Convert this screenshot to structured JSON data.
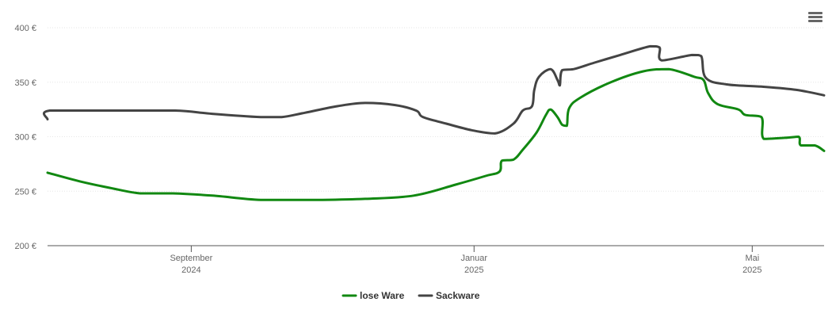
{
  "chart_data": {
    "type": "line",
    "currency_suffix": " €",
    "ylim": [
      200,
      400
    ],
    "yticks": [
      200,
      250,
      300,
      350,
      400
    ],
    "ytick_labels": [
      "200 €",
      "250 €",
      "300 €",
      "350 €",
      "400 €"
    ],
    "xlim": [
      "2024-07-01",
      "2025-06-01"
    ],
    "xticks": [
      {
        "date": "2024-09-01",
        "month": "September",
        "year": "2024"
      },
      {
        "date": "2025-01-01",
        "month": "Januar",
        "year": "2025"
      },
      {
        "date": "2025-05-01",
        "month": "Mai",
        "year": "2025"
      }
    ],
    "grid": true,
    "legend_position": "bottom-center",
    "series": [
      {
        "name": "lose Ware",
        "color": "#118811",
        "points": [
          [
            "2024-07-01",
            267
          ],
          [
            "2024-07-15",
            259
          ],
          [
            "2024-07-28",
            253
          ],
          [
            "2024-08-10",
            248
          ],
          [
            "2024-08-24",
            248
          ],
          [
            "2024-09-10",
            246
          ],
          [
            "2024-10-01",
            242
          ],
          [
            "2024-10-25",
            242
          ],
          [
            "2024-11-15",
            243
          ],
          [
            "2024-12-06",
            246
          ],
          [
            "2024-12-24",
            256
          ],
          [
            "2025-01-06",
            264
          ],
          [
            "2025-01-12",
            268
          ],
          [
            "2025-01-13",
            278
          ],
          [
            "2025-01-18",
            279
          ],
          [
            "2025-01-22",
            288
          ],
          [
            "2025-01-28",
            304
          ],
          [
            "2025-02-01",
            320
          ],
          [
            "2025-02-03",
            325
          ],
          [
            "2025-02-06",
            318
          ],
          [
            "2025-02-08",
            311
          ],
          [
            "2025-02-10",
            310
          ],
          [
            "2025-02-11",
            326
          ],
          [
            "2025-02-16",
            336
          ],
          [
            "2025-03-01",
            350
          ],
          [
            "2025-03-15",
            360
          ],
          [
            "2025-03-26",
            362
          ],
          [
            "2025-04-06",
            355
          ],
          [
            "2025-04-10",
            352
          ],
          [
            "2025-04-12",
            340
          ],
          [
            "2025-04-16",
            330
          ],
          [
            "2025-04-25",
            325
          ],
          [
            "2025-04-28",
            320
          ],
          [
            "2025-05-05",
            318
          ],
          [
            "2025-05-06",
            298
          ],
          [
            "2025-05-15",
            299
          ],
          [
            "2025-05-21",
            300
          ],
          [
            "2025-05-22",
            292
          ],
          [
            "2025-05-28",
            292
          ],
          [
            "2025-06-01",
            287
          ]
        ]
      },
      {
        "name": "Sackware",
        "color": "#444444",
        "points": [
          [
            "2024-07-01",
            316
          ],
          [
            "2024-07-02",
            324
          ],
          [
            "2024-07-30",
            324
          ],
          [
            "2024-08-25",
            324
          ],
          [
            "2024-09-10",
            321
          ],
          [
            "2024-10-01",
            318
          ],
          [
            "2024-10-10",
            318
          ],
          [
            "2024-10-20",
            322
          ],
          [
            "2024-11-03",
            328
          ],
          [
            "2024-11-15",
            331
          ],
          [
            "2024-11-28",
            329
          ],
          [
            "2024-12-07",
            324
          ],
          [
            "2024-12-10",
            318
          ],
          [
            "2024-12-20",
            312
          ],
          [
            "2024-12-31",
            306
          ],
          [
            "2025-01-10",
            303
          ],
          [
            "2025-01-18",
            312
          ],
          [
            "2025-01-22",
            324
          ],
          [
            "2025-01-26",
            328
          ],
          [
            "2025-01-27",
            343
          ],
          [
            "2025-01-29",
            355
          ],
          [
            "2025-02-03",
            362
          ],
          [
            "2025-02-06",
            352
          ],
          [
            "2025-02-07",
            347
          ],
          [
            "2025-02-08",
            361
          ],
          [
            "2025-02-13",
            362
          ],
          [
            "2025-02-22",
            368
          ],
          [
            "2025-03-05",
            375
          ],
          [
            "2025-03-18",
            383
          ],
          [
            "2025-03-22",
            382
          ],
          [
            "2025-03-23",
            370
          ],
          [
            "2025-04-05",
            375
          ],
          [
            "2025-04-09",
            374
          ],
          [
            "2025-04-11",
            354
          ],
          [
            "2025-04-20",
            348
          ],
          [
            "2025-05-05",
            346
          ],
          [
            "2025-05-20",
            343
          ],
          [
            "2025-06-01",
            338
          ]
        ]
      }
    ]
  }
}
